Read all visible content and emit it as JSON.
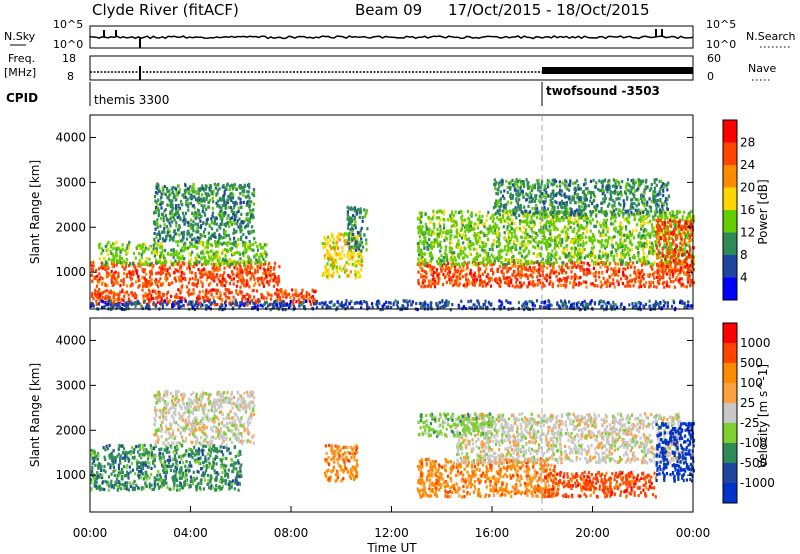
{
  "header": {
    "station": "Clyde River (fitACF)",
    "beam": "Beam 09",
    "dates": "17/Oct/2015 - 18/Oct/2015"
  },
  "top_panels": {
    "nsky": {
      "label": "N.Sky",
      "ticks": [
        "10^5",
        "10^0"
      ]
    },
    "nsearch": {
      "label": "N.Search",
      "ticks": [
        "10^5",
        "10^0"
      ]
    },
    "freq": {
      "label_line1": "Freq.",
      "label_line2": "[MHz]",
      "ticks": [
        "18",
        "8"
      ]
    },
    "nave": {
      "label": "Nave",
      "ticks": [
        "60",
        "0"
      ]
    },
    "cpid": {
      "label": "CPID",
      "programs": [
        {
          "name": "themis 3300",
          "start_hour": 0
        },
        {
          "name": "twofsound -3503",
          "start_hour": 18
        }
      ]
    }
  },
  "colors": {
    "power_scale": [
      "#0000ff",
      "#1e46a0",
      "#2e8b57",
      "#66cd00",
      "#ffd700",
      "#ff8c00",
      "#ff4500",
      "#ff0000"
    ],
    "velocity_scale": [
      "#ff0000",
      "#ff4500",
      "#ff8c00",
      "#ffa040",
      "#c8c8c8",
      "#7cd032",
      "#2e8b57",
      "#1e46a0",
      "#0033cc"
    ]
  },
  "chart_data": [
    {
      "type": "heatmap",
      "name": "power",
      "ylabel": "Slant Range [km]",
      "xlabel": "",
      "xlim_hours": [
        0,
        24
      ],
      "ylim": [
        180,
        4500
      ],
      "yticks": [
        "1000",
        "2000",
        "3000",
        "4000"
      ],
      "colorbar": {
        "label": "Power [dB]",
        "ticks": [
          "4",
          "8",
          "12",
          "16",
          "20",
          "24",
          "28"
        ],
        "range": [
          0,
          32
        ]
      },
      "features": [
        {
          "t0": 0.0,
          "t1": 7.5,
          "r0": 700,
          "r1": 1250,
          "level": 26
        },
        {
          "t0": 0.3,
          "t1": 7.0,
          "r0": 1200,
          "r1": 1700,
          "level": 15
        },
        {
          "t0": 2.5,
          "t1": 6.5,
          "r0": 1700,
          "r1": 3000,
          "level": 11
        },
        {
          "t0": 0.0,
          "t1": 9.0,
          "r0": 300,
          "r1": 650,
          "level": 24
        },
        {
          "t0": 9.2,
          "t1": 10.8,
          "r0": 900,
          "r1": 1900,
          "level": 18
        },
        {
          "t0": 10.2,
          "t1": 11.0,
          "r0": 1500,
          "r1": 2500,
          "level": 8
        },
        {
          "t0": 13.0,
          "t1": 24.0,
          "r0": 700,
          "r1": 1250,
          "level": 24
        },
        {
          "t0": 13.0,
          "t1": 24.0,
          "r0": 1200,
          "r1": 2400,
          "level": 14
        },
        {
          "t0": 16.0,
          "t1": 23.0,
          "r0": 2300,
          "r1": 3100,
          "level": 10
        },
        {
          "t0": 22.5,
          "t1": 24.0,
          "r0": 1000,
          "r1": 2200,
          "level": 27
        },
        {
          "t0": 0.0,
          "t1": 24.0,
          "r0": 200,
          "r1": 400,
          "level": 6
        }
      ]
    },
    {
      "type": "heatmap",
      "name": "velocity",
      "ylabel": "Slant Range [km]",
      "xlabel": "Time UT",
      "xlim_hours": [
        0,
        24
      ],
      "xticks": [
        "00:00",
        "04:00",
        "08:00",
        "12:00",
        "16:00",
        "20:00",
        "00:00"
      ],
      "ylim": [
        180,
        4500
      ],
      "yticks": [
        "1000",
        "2000",
        "3000",
        "4000"
      ],
      "colorbar": {
        "label": "Velocity [m s^-1]",
        "ticks": [
          "1000",
          "500",
          "100",
          "25",
          "-25",
          "-100",
          "-500",
          "-1000"
        ]
      },
      "features": [
        {
          "t0": 0.0,
          "t1": 6.0,
          "r0": 700,
          "r1": 1700,
          "class": 6
        },
        {
          "t0": 2.5,
          "t1": 6.5,
          "r0": 1700,
          "r1": 2900,
          "class": 4
        },
        {
          "t0": 9.3,
          "t1": 10.6,
          "r0": 900,
          "r1": 1700,
          "class": 2
        },
        {
          "t0": 13.0,
          "t1": 18.5,
          "r0": 550,
          "r1": 1400,
          "class": 2
        },
        {
          "t0": 18.0,
          "t1": 22.5,
          "r0": 550,
          "r1": 1100,
          "class": 1
        },
        {
          "t0": 14.5,
          "t1": 23.5,
          "r0": 1300,
          "r1": 2400,
          "class": 4
        },
        {
          "t0": 22.5,
          "t1": 24.0,
          "r0": 900,
          "r1": 2200,
          "class": 8
        },
        {
          "t0": 13.0,
          "t1": 16.0,
          "r0": 1900,
          "r1": 2400,
          "class": 5
        }
      ]
    }
  ]
}
